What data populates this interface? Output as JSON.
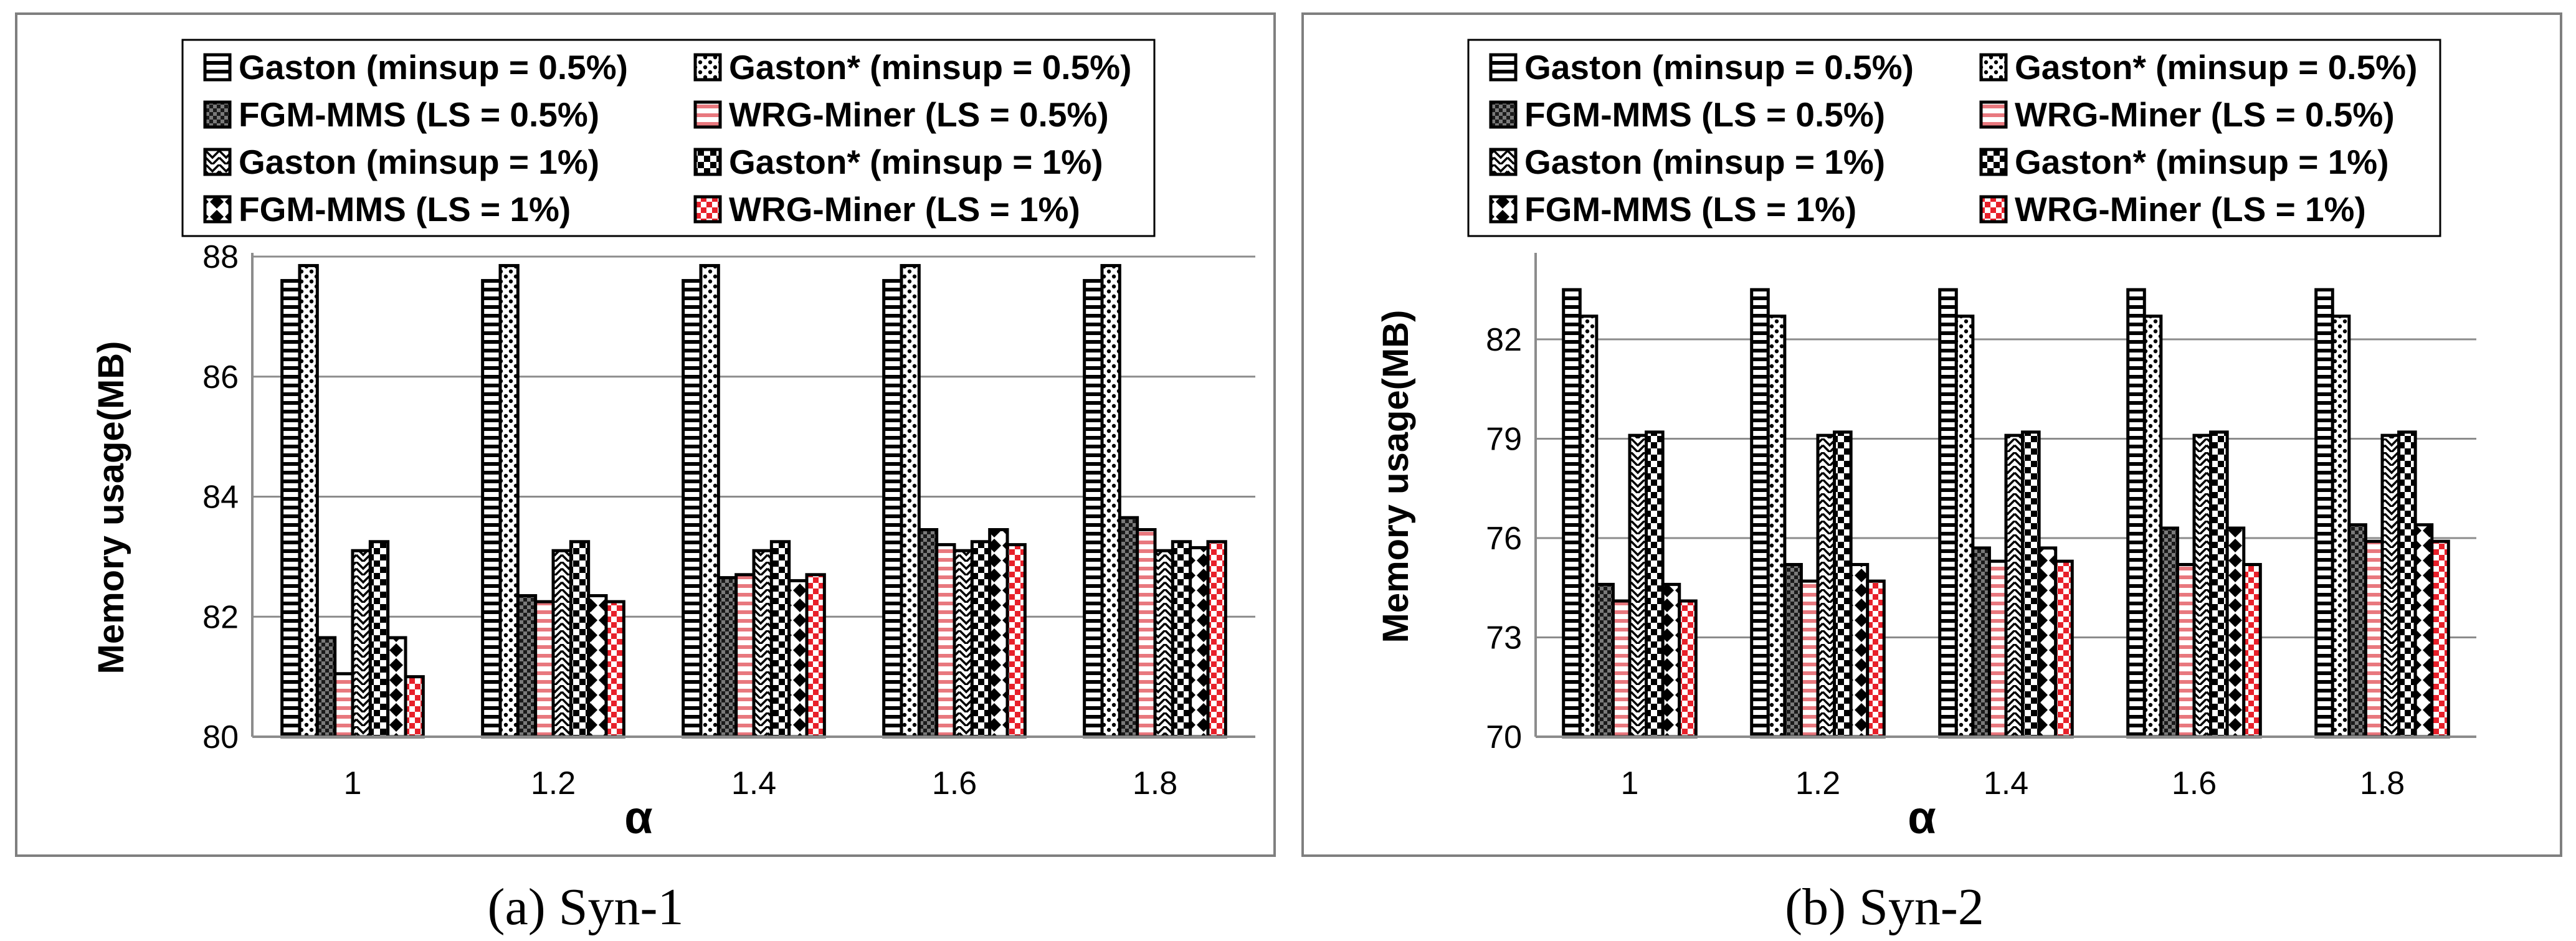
{
  "chart_data": [
    {
      "type": "bar",
      "caption": "(a) Syn-1",
      "title": "",
      "xlabel": "α",
      "ylabel": "Memory usage(MB)",
      "categories": [
        "1",
        "1.2",
        "1.4",
        "1.6",
        "1.8"
      ],
      "ylim": [
        80,
        88
      ],
      "yticks": [
        "80",
        "82",
        "84",
        "86",
        "88"
      ],
      "grid": true,
      "legend": [
        "Gaston (minsup = 0.5%)",
        "Gaston* (minsup = 0.5%)",
        "FGM-MMS (LS = 0.5%)",
        "WRG-Miner (LS = 0.5%)",
        "Gaston (minsup = 1%)",
        "Gaston* (minsup = 1%)",
        "FGM-MMS (LS = 1%)",
        "WRG-Miner (LS = 1%)"
      ],
      "legend_position": "top",
      "series": [
        {
          "name": "Gaston (minsup = 0.5%)",
          "values": [
            87.6,
            87.6,
            87.6,
            87.6,
            87.6
          ]
        },
        {
          "name": "Gaston* (minsup = 0.5%)",
          "values": [
            87.85,
            87.85,
            87.85,
            87.85,
            87.85
          ]
        },
        {
          "name": "FGM-MMS (LS = 0.5%)",
          "values": [
            81.65,
            82.35,
            82.65,
            83.45,
            83.65
          ]
        },
        {
          "name": "WRG-Miner (LS = 0.5%)",
          "values": [
            81.05,
            82.25,
            82.7,
            83.2,
            83.45
          ]
        },
        {
          "name": "Gaston (minsup = 1%)",
          "values": [
            83.1,
            83.1,
            83.1,
            83.1,
            83.1
          ]
        },
        {
          "name": "Gaston* (minsup = 1%)",
          "values": [
            83.25,
            83.25,
            83.25,
            83.25,
            83.25
          ]
        },
        {
          "name": "FGM-MMS (LS = 1%)",
          "values": [
            81.65,
            82.35,
            82.6,
            83.45,
            83.15
          ]
        },
        {
          "name": "WRG-Miner (LS = 1%)",
          "values": [
            81.0,
            82.25,
            82.7,
            83.2,
            83.25
          ]
        }
      ]
    },
    {
      "type": "bar",
      "caption": "(b) Syn-2",
      "title": "",
      "xlabel": "α",
      "ylabel": "Memory usage(MB)",
      "categories": [
        "1",
        "1.2",
        "1.4",
        "1.6",
        "1.8"
      ],
      "ylim": [
        70,
        84.5
      ],
      "yticks": [
        "70",
        "73",
        "76",
        "79",
        "82"
      ],
      "grid": true,
      "legend": [
        "Gaston (minsup = 0.5%)",
        "Gaston* (minsup = 0.5%)",
        "FGM-MMS (LS = 0.5%)",
        "WRG-Miner (LS = 0.5%)",
        "Gaston (minsup = 1%)",
        "Gaston* (minsup = 1%)",
        "FGM-MMS (LS = 1%)",
        "WRG-Miner (LS = 1%)"
      ],
      "legend_position": "top",
      "series": [
        {
          "name": "Gaston (minsup = 0.5%)",
          "values": [
            83.5,
            83.5,
            83.5,
            83.5,
            83.5
          ]
        },
        {
          "name": "Gaston* (minsup = 0.5%)",
          "values": [
            82.7,
            82.7,
            82.7,
            82.7,
            82.7
          ]
        },
        {
          "name": "FGM-MMS (LS = 0.5%)",
          "values": [
            74.6,
            75.2,
            75.7,
            76.3,
            76.4
          ]
        },
        {
          "name": "WRG-Miner (LS = 0.5%)",
          "values": [
            74.1,
            74.7,
            75.3,
            75.2,
            75.9
          ]
        },
        {
          "name": "Gaston (minsup = 1%)",
          "values": [
            79.1,
            79.1,
            79.1,
            79.1,
            79.1
          ]
        },
        {
          "name": "Gaston* (minsup = 1%)",
          "values": [
            79.2,
            79.2,
            79.2,
            79.2,
            79.2
          ]
        },
        {
          "name": "FGM-MMS (LS = 1%)",
          "values": [
            74.6,
            75.2,
            75.7,
            76.3,
            76.4
          ]
        },
        {
          "name": "WRG-Miner (LS = 1%)",
          "values": [
            74.1,
            74.7,
            75.3,
            75.2,
            75.9
          ]
        }
      ]
    }
  ],
  "series_styles": [
    {
      "pattern": "hstripe",
      "color": "#000000"
    },
    {
      "pattern": "dots",
      "color": "#000000"
    },
    {
      "pattern": "grid",
      "color": "#000000"
    },
    {
      "pattern": "hstripe",
      "color": "#e8787e"
    },
    {
      "pattern": "zigzag",
      "color": "#000000"
    },
    {
      "pattern": "checker",
      "color": "#000000"
    },
    {
      "pattern": "diamond",
      "color": "#000000"
    },
    {
      "pattern": "checker",
      "color": "#e8202a"
    }
  ]
}
